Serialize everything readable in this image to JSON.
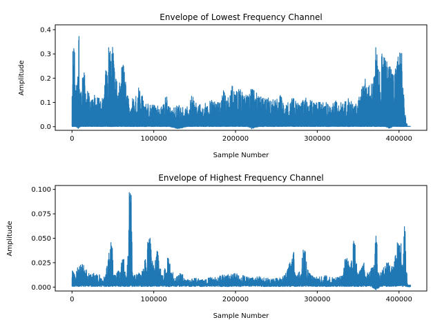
{
  "chart_data": [
    {
      "type": "line",
      "title": "Envelope of Lowest Frequency Channel",
      "xlabel": "Sample Number",
      "ylabel": "Amplitude",
      "xlim": [
        -20500,
        434000
      ],
      "ylim": [
        -0.015,
        0.42
      ],
      "xticks": [
        0,
        100000,
        200000,
        300000,
        400000
      ],
      "xtick_labels": [
        "0",
        "100000",
        "200000",
        "300000",
        "400000"
      ],
      "yticks": [
        0.0,
        0.1,
        0.2,
        0.3,
        0.4
      ],
      "ytick_labels": [
        "0.0",
        "0.1",
        "0.2",
        "0.3",
        "0.4"
      ],
      "grid": false,
      "line_color": "#1f77b4",
      "n_samples": 414000,
      "envelope": [
        [
          0,
          0.02,
          0.14
        ],
        [
          2000,
          0.0,
          0.33
        ],
        [
          5000,
          0.0,
          0.18
        ],
        [
          7500,
          -0.008,
          0.41
        ],
        [
          10000,
          0.0,
          0.16
        ],
        [
          14000,
          0.0,
          0.23
        ],
        [
          20000,
          0.0,
          0.14
        ],
        [
          26000,
          0.0,
          0.13
        ],
        [
          32000,
          0.0,
          0.12
        ],
        [
          38000,
          0.0,
          0.12
        ],
        [
          42000,
          0.0,
          0.24
        ],
        [
          46000,
          0.0,
          0.33
        ],
        [
          50000,
          0.0,
          0.34
        ],
        [
          56000,
          0.0,
          0.14
        ],
        [
          62000,
          0.0,
          0.29
        ],
        [
          68000,
          0.0,
          0.13
        ],
        [
          75000,
          0.0,
          0.12
        ],
        [
          82000,
          0.0,
          0.17
        ],
        [
          90000,
          0.0,
          0.1
        ],
        [
          100000,
          0.0,
          0.09
        ],
        [
          110000,
          0.0,
          0.09
        ],
        [
          115000,
          0.0,
          0.13
        ],
        [
          120000,
          0.0,
          0.08
        ],
        [
          130000,
          -0.01,
          0.09
        ],
        [
          140000,
          0.0,
          0.08
        ],
        [
          147000,
          0.0,
          0.13
        ],
        [
          155000,
          0.0,
          0.09
        ],
        [
          165000,
          0.0,
          0.1
        ],
        [
          170000,
          0.0,
          0.13
        ],
        [
          180000,
          0.0,
          0.1
        ],
        [
          185000,
          0.0,
          0.15
        ],
        [
          190000,
          0.0,
          0.12
        ],
        [
          195000,
          0.0,
          0.17
        ],
        [
          200000,
          0.0,
          0.15
        ],
        [
          205000,
          0.0,
          0.16
        ],
        [
          210000,
          0.0,
          0.13
        ],
        [
          215000,
          0.0,
          0.14
        ],
        [
          220000,
          -0.01,
          0.16
        ],
        [
          228000,
          0.0,
          0.13
        ],
        [
          235000,
          0.0,
          0.12
        ],
        [
          240000,
          0.0,
          0.12
        ],
        [
          248000,
          0.0,
          0.11
        ],
        [
          255000,
          0.0,
          0.13
        ],
        [
          262000,
          0.0,
          0.1
        ],
        [
          270000,
          0.0,
          0.12
        ],
        [
          278000,
          0.0,
          0.1
        ],
        [
          285000,
          0.0,
          0.12
        ],
        [
          292000,
          0.0,
          0.11
        ],
        [
          300000,
          0.0,
          0.1
        ],
        [
          308000,
          0.0,
          0.11
        ],
        [
          315000,
          0.0,
          0.09
        ],
        [
          322000,
          0.0,
          0.11
        ],
        [
          330000,
          0.0,
          0.1
        ],
        [
          338000,
          0.0,
          0.12
        ],
        [
          345000,
          0.0,
          0.09
        ],
        [
          352000,
          0.0,
          0.14
        ],
        [
          358000,
          0.0,
          0.2
        ],
        [
          363000,
          0.0,
          0.17
        ],
        [
          370000,
          0.0,
          0.22
        ],
        [
          372500,
          0.0,
          0.33
        ],
        [
          375000,
          0.0,
          0.24
        ],
        [
          380000,
          0.0,
          0.3
        ],
        [
          384000,
          0.0,
          0.27
        ],
        [
          388000,
          -0.008,
          0.26
        ],
        [
          392000,
          0.0,
          0.22
        ],
        [
          396000,
          0.0,
          0.26
        ],
        [
          400000,
          0.0,
          0.29
        ],
        [
          402000,
          0.0,
          0.32
        ],
        [
          405000,
          0.0,
          0.15
        ],
        [
          408000,
          0.0,
          0.05
        ],
        [
          410000,
          0.0,
          0.002
        ],
        [
          414000,
          0.0,
          0.002
        ]
      ]
    },
    {
      "type": "line",
      "title": "Envelope of Highest Frequency Channel",
      "xlabel": "Sample Number",
      "ylabel": "Amplitude",
      "xlim": [
        -20500,
        434000
      ],
      "ylim": [
        -0.004,
        0.104
      ],
      "xticks": [
        0,
        100000,
        200000,
        300000,
        400000
      ],
      "xtick_labels": [
        "0",
        "100000",
        "200000",
        "300000",
        "400000"
      ],
      "yticks": [
        0.0,
        0.025,
        0.05,
        0.075,
        0.1
      ],
      "ytick_labels": [
        "0.000",
        "0.025",
        "0.050",
        "0.075",
        "0.100"
      ],
      "grid": false,
      "line_color": "#1f77b4",
      "n_samples": 414000,
      "envelope": [
        [
          0,
          0.0,
          0.019
        ],
        [
          3000,
          0.0,
          0.014
        ],
        [
          7000,
          0.0,
          0.02
        ],
        [
          13000,
          0.0,
          0.025
        ],
        [
          20000,
          0.0,
          0.015
        ],
        [
          30000,
          0.0,
          0.014
        ],
        [
          40000,
          0.0,
          0.01
        ],
        [
          48000,
          0.0,
          0.051
        ],
        [
          52000,
          0.0,
          0.014
        ],
        [
          56000,
          0.0,
          0.017
        ],
        [
          62000,
          0.0,
          0.029
        ],
        [
          66000,
          0.0,
          0.01
        ],
        [
          71000,
          0.0,
          0.101
        ],
        [
          75000,
          0.0,
          0.012
        ],
        [
          82000,
          0.0,
          0.015
        ],
        [
          87000,
          0.0,
          0.02
        ],
        [
          93000,
          0.0,
          0.047
        ],
        [
          95000,
          0.0,
          0.05
        ],
        [
          100000,
          0.0,
          0.02
        ],
        [
          104000,
          0.0,
          0.04
        ],
        [
          110000,
          0.0,
          0.012
        ],
        [
          118000,
          0.0,
          0.03
        ],
        [
          125000,
          0.0,
          0.01
        ],
        [
          133000,
          0.0,
          0.015
        ],
        [
          140000,
          0.0,
          0.008
        ],
        [
          150000,
          0.0,
          0.01
        ],
        [
          160000,
          0.0,
          0.008
        ],
        [
          170000,
          0.0,
          0.01
        ],
        [
          180000,
          0.0,
          0.012
        ],
        [
          190000,
          0.0,
          0.013
        ],
        [
          200000,
          0.0,
          0.014
        ],
        [
          210000,
          0.0,
          0.012
        ],
        [
          220000,
          0.0,
          0.01
        ],
        [
          230000,
          0.0,
          0.011
        ],
        [
          240000,
          0.0,
          0.01
        ],
        [
          250000,
          0.0,
          0.009
        ],
        [
          260000,
          0.0,
          0.012
        ],
        [
          270000,
          0.0,
          0.036
        ],
        [
          275000,
          0.0,
          0.012
        ],
        [
          284000,
          0.0,
          0.039
        ],
        [
          290000,
          0.0,
          0.015
        ],
        [
          300000,
          0.0,
          0.01
        ],
        [
          310000,
          0.0,
          0.012
        ],
        [
          320000,
          0.0,
          0.01
        ],
        [
          330000,
          0.0,
          0.012
        ],
        [
          335000,
          0.0,
          0.03
        ],
        [
          340000,
          0.0,
          0.025
        ],
        [
          345000,
          0.0,
          0.047
        ],
        [
          350000,
          0.0,
          0.016
        ],
        [
          356000,
          0.0,
          0.025
        ],
        [
          362000,
          0.0,
          0.015
        ],
        [
          367000,
          0.0,
          0.02
        ],
        [
          372000,
          -0.003,
          0.053
        ],
        [
          376000,
          0.0,
          0.016
        ],
        [
          380000,
          0.0,
          0.02
        ],
        [
          386000,
          0.0,
          0.026
        ],
        [
          392000,
          0.0,
          0.022
        ],
        [
          398000,
          0.0,
          0.05
        ],
        [
          401000,
          0.0,
          0.045
        ],
        [
          404000,
          0.0,
          0.025
        ],
        [
          407000,
          0.0,
          0.062
        ],
        [
          409000,
          0.0,
          0.015
        ],
        [
          411000,
          0.0,
          0.0005
        ],
        [
          414000,
          0.0,
          0.0005
        ]
      ]
    }
  ]
}
